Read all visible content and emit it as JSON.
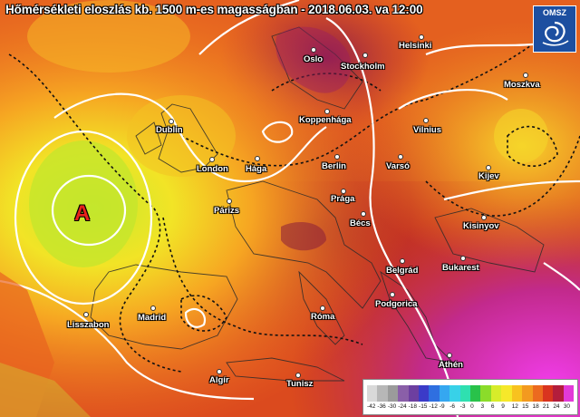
{
  "title": "Hőmérsékleti eloszlás kb. 1500 m-es magasságban - 2018.06.03. va 12:00",
  "logo": {
    "text": "OMSZ",
    "icon": "omsz-swirl-icon"
  },
  "pressure_center": {
    "label": "A",
    "color": "#e8211b"
  },
  "cities": [
    {
      "name": "Helsinki"
    },
    {
      "name": "Oslo"
    },
    {
      "name": "Stockholm"
    },
    {
      "name": "Moszkva"
    },
    {
      "name": "Koppenhága"
    },
    {
      "name": "Dublin"
    },
    {
      "name": "Vilnius"
    },
    {
      "name": "London"
    },
    {
      "name": "Hága"
    },
    {
      "name": "Berlin"
    },
    {
      "name": "Varsó"
    },
    {
      "name": "Kijev"
    },
    {
      "name": "Prága"
    },
    {
      "name": "Párizs"
    },
    {
      "name": "Bécs"
    },
    {
      "name": "Kisinyov"
    },
    {
      "name": "Bukarest"
    },
    {
      "name": "Belgrád"
    },
    {
      "name": "Madrid"
    },
    {
      "name": "Podgorica"
    },
    {
      "name": "Róma"
    },
    {
      "name": "Lisszabon"
    },
    {
      "name": "Athén"
    },
    {
      "name": "Algír"
    },
    {
      "name": "Tunisz"
    }
  ],
  "legend": {
    "ticks": [
      "-42",
      "-36",
      "-30",
      "-24",
      "-18",
      "-15",
      "-12",
      "-9",
      "-6",
      "-3",
      "0",
      "3",
      "6",
      "9",
      "12",
      "15",
      "18",
      "21",
      "24",
      "30"
    ],
    "colors": [
      "#d9d9d9",
      "#b7b7b7",
      "#9b9b9b",
      "#8a5fa8",
      "#6d3fa0",
      "#3b3bc8",
      "#2f6fe0",
      "#35a7f0",
      "#38d1e8",
      "#2fe0b0",
      "#29c24a",
      "#8bdc2a",
      "#d7ec2a",
      "#f6e82a",
      "#f8c21f",
      "#f39a1f",
      "#ec6a1f",
      "#d9341f",
      "#b31d3c",
      "#e23ad8"
    ]
  }
}
